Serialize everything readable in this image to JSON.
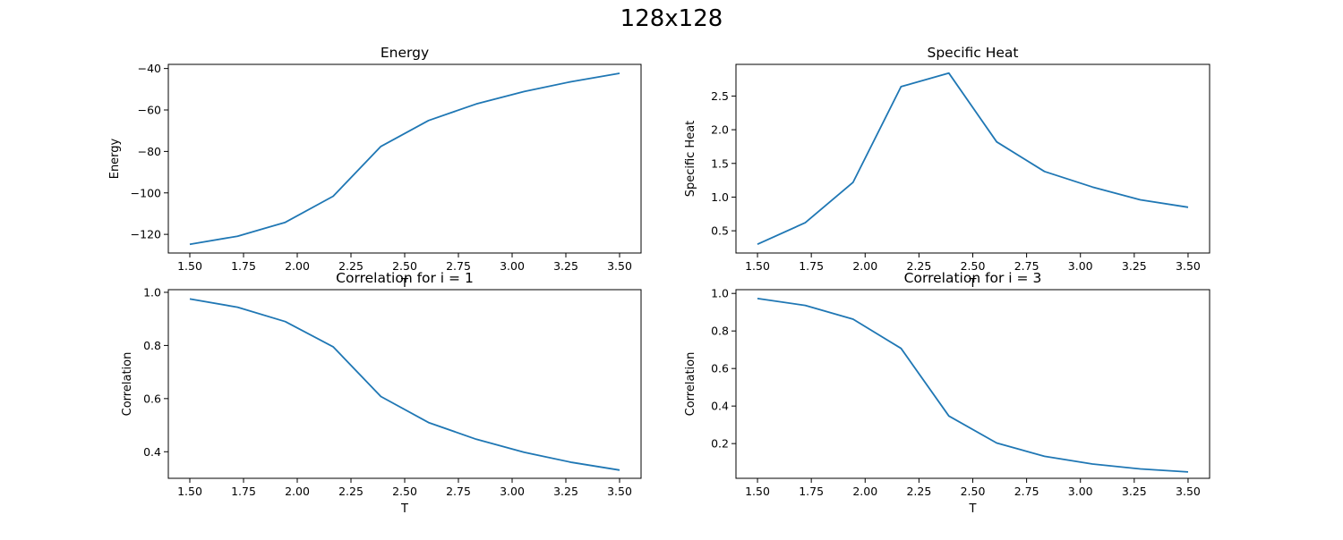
{
  "figure": {
    "title": "128x128"
  },
  "colors": {
    "line": "#1f77b4",
    "axis": "#000000",
    "background": "#ffffff"
  },
  "chart_data": [
    {
      "type": "line",
      "title": "Energy",
      "xlabel": "T",
      "ylabel": "Energy",
      "xlim": [
        1.4,
        3.6
      ],
      "ylim": [
        -129,
        -38
      ],
      "xticks": [
        1.5,
        1.75,
        2.0,
        2.25,
        2.5,
        2.75,
        3.0,
        3.25,
        3.5
      ],
      "xticklabels": [
        "1.50",
        "1.75",
        "2.00",
        "2.25",
        "2.50",
        "2.75",
        "3.00",
        "3.25",
        "3.50"
      ],
      "yticks": [
        -120,
        -100,
        -80,
        -60,
        -40
      ],
      "yticklabels": [
        "−120",
        "−100",
        "−80",
        "−60",
        "−40"
      ],
      "grid": false,
      "series": [
        {
          "x": [
            1.5,
            1.722,
            1.944,
            2.167,
            2.389,
            2.611,
            2.833,
            3.056,
            3.278,
            3.5
          ],
          "y": [
            -124.8,
            -120.9,
            -114.2,
            -101.6,
            -77.6,
            -65.1,
            -57.1,
            -51.1,
            -46.3,
            -42.3
          ]
        }
      ]
    },
    {
      "type": "line",
      "title": "Specific Heat",
      "xlabel": "T",
      "ylabel": "Specific Heat",
      "xlim": [
        1.4,
        3.6
      ],
      "ylim": [
        0.17,
        2.97
      ],
      "xticks": [
        1.5,
        1.75,
        2.0,
        2.25,
        2.5,
        2.75,
        3.0,
        3.25,
        3.5
      ],
      "xticklabels": [
        "1.50",
        "1.75",
        "2.00",
        "2.25",
        "2.50",
        "2.75",
        "3.00",
        "3.25",
        "3.50"
      ],
      "yticks": [
        0.5,
        1.0,
        1.5,
        2.0,
        2.5
      ],
      "yticklabels": [
        "0.5",
        "1.0",
        "1.5",
        "2.0",
        "2.5"
      ],
      "grid": false,
      "series": [
        {
          "x": [
            1.5,
            1.722,
            1.944,
            2.167,
            2.389,
            2.611,
            2.833,
            3.056,
            3.278,
            3.5
          ],
          "y": [
            0.3,
            0.62,
            1.22,
            2.64,
            2.84,
            1.82,
            1.38,
            1.15,
            0.96,
            0.85
          ]
        }
      ]
    },
    {
      "type": "line",
      "title": "Correlation for i = 1",
      "xlabel": "T",
      "ylabel": "Correlation",
      "xlim": [
        1.4,
        3.6
      ],
      "ylim": [
        0.3,
        1.01
      ],
      "xticks": [
        1.5,
        1.75,
        2.0,
        2.25,
        2.5,
        2.75,
        3.0,
        3.25,
        3.5
      ],
      "xticklabels": [
        "1.50",
        "1.75",
        "2.00",
        "2.25",
        "2.50",
        "2.75",
        "3.00",
        "3.25",
        "3.50"
      ],
      "yticks": [
        0.4,
        0.6,
        0.8,
        1.0
      ],
      "yticklabels": [
        "0.4",
        "0.6",
        "0.8",
        "1.0"
      ],
      "grid": false,
      "series": [
        {
          "x": [
            1.5,
            1.722,
            1.944,
            2.167,
            2.389,
            2.611,
            2.833,
            3.056,
            3.278,
            3.5
          ],
          "y": [
            0.975,
            0.944,
            0.89,
            0.795,
            0.608,
            0.51,
            0.447,
            0.398,
            0.36,
            0.331
          ]
        }
      ]
    },
    {
      "type": "line",
      "title": "Correlation for i = 3",
      "xlabel": "T",
      "ylabel": "Correlation",
      "xlim": [
        1.4,
        3.6
      ],
      "ylim": [
        0.015,
        1.02
      ],
      "xticks": [
        1.5,
        1.75,
        2.0,
        2.25,
        2.5,
        2.75,
        3.0,
        3.25,
        3.5
      ],
      "xticklabels": [
        "1.50",
        "1.75",
        "2.00",
        "2.25",
        "2.50",
        "2.75",
        "3.00",
        "3.25",
        "3.50"
      ],
      "yticks": [
        0.2,
        0.4,
        0.6,
        0.8,
        1.0
      ],
      "yticklabels": [
        "0.2",
        "0.4",
        "0.6",
        "0.8",
        "1.0"
      ],
      "grid": false,
      "series": [
        {
          "x": [
            1.5,
            1.722,
            1.944,
            2.167,
            2.389,
            2.611,
            2.833,
            3.056,
            3.278,
            3.5
          ],
          "y": [
            0.973,
            0.936,
            0.863,
            0.707,
            0.347,
            0.203,
            0.132,
            0.091,
            0.065,
            0.049
          ]
        }
      ]
    }
  ]
}
